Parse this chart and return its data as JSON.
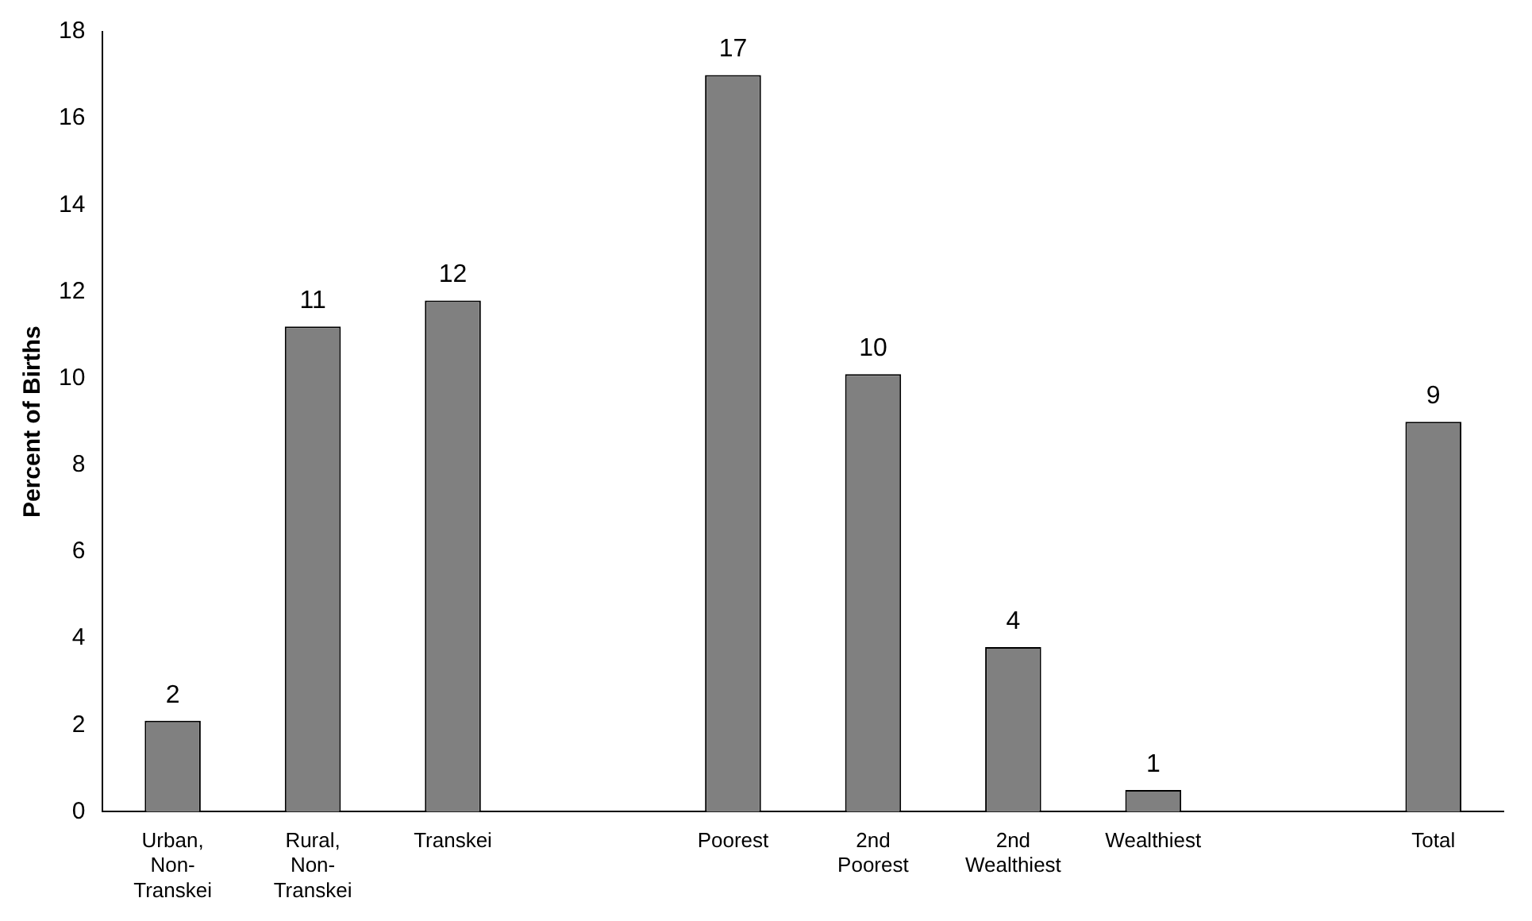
{
  "chart_data": {
    "type": "bar",
    "ylabel": "Percent of Births",
    "categories": [
      "Urban, Non-Transkei",
      "Rural, Non-Transkei",
      "Transkei",
      null,
      "Poorest",
      "2nd Poorest",
      "2nd Wealthiest",
      "Wealthiest",
      null,
      "Total"
    ],
    "values": [
      2.1,
      11.2,
      11.8,
      null,
      17,
      10.1,
      3.8,
      0.5,
      null,
      9
    ],
    "value_labels": [
      "2",
      "11",
      "12",
      null,
      "17",
      "10",
      "4",
      "1",
      null,
      "9"
    ],
    "color": "#808080",
    "ylim": [
      0,
      18
    ],
    "yticks": [
      0,
      2,
      4,
      6,
      8,
      10,
      12,
      14,
      16,
      18
    ],
    "grid": false,
    "legend": false
  }
}
